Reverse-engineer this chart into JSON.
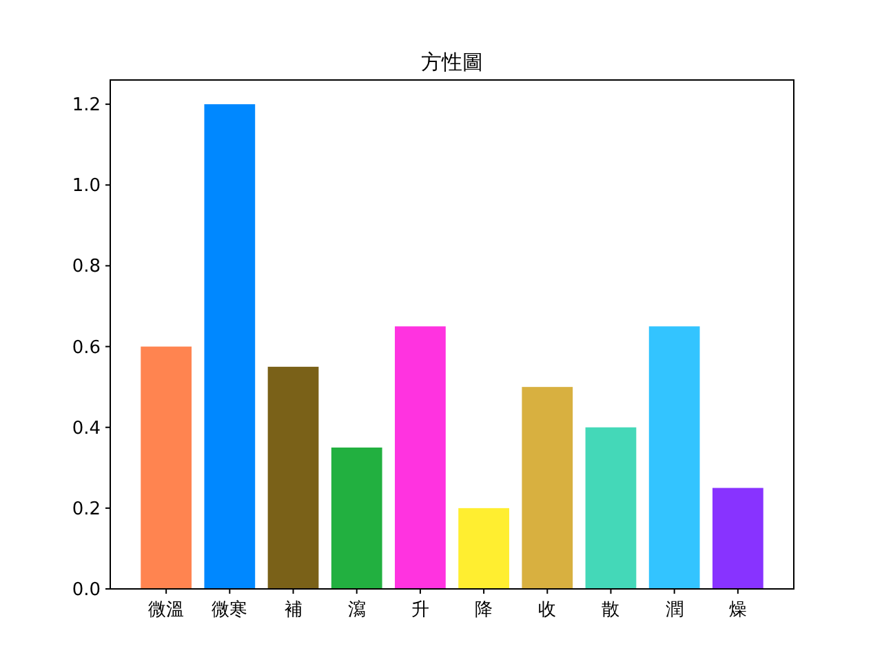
{
  "chart_data": {
    "type": "bar",
    "title": "方性圖",
    "categories": [
      "微溫",
      "微寒",
      "補",
      "瀉",
      "升",
      "降",
      "收",
      "散",
      "潤",
      "燥"
    ],
    "values": [
      0.6,
      1.2,
      0.55,
      0.35,
      0.65,
      0.2,
      0.5,
      0.4,
      0.65,
      0.25
    ],
    "colors": [
      "#ff8450",
      "#0088ff",
      "#7a6118",
      "#22b040",
      "#ff33e0",
      "#ffee30",
      "#d8b040",
      "#44d8b8",
      "#33c4ff",
      "#8833ff"
    ],
    "ylim": [
      0,
      1.26
    ],
    "yticks": [
      {
        "value": 0,
        "label": "0.0"
      },
      {
        "value": 0.2,
        "label": "0.2"
      },
      {
        "value": 0.4,
        "label": "0.4"
      },
      {
        "value": 0.6,
        "label": "0.6"
      },
      {
        "value": 0.8,
        "label": "0.8"
      },
      {
        "value": 1.0,
        "label": "1.0"
      },
      {
        "value": 1.2,
        "label": "1.2"
      }
    ]
  }
}
